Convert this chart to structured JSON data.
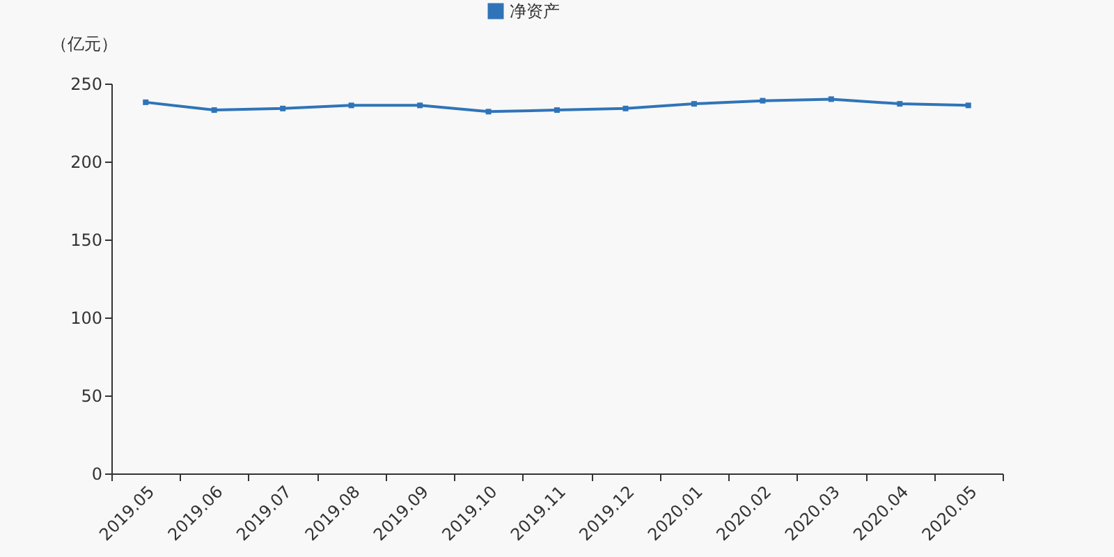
{
  "chart_data": {
    "type": "line",
    "ylabel": "（亿元）",
    "categories": [
      "2019.05",
      "2019.06",
      "2019.07",
      "2019.08",
      "2019.09",
      "2019.10",
      "2019.11",
      "2019.12",
      "2020.01",
      "2020.02",
      "2020.03",
      "2020.04",
      "2020.05"
    ],
    "series": [
      {
        "name": "净资产",
        "color": "#2f74b8",
        "values": [
          238,
          233,
          234,
          236,
          236,
          232,
          233,
          234,
          237,
          239,
          240,
          237,
          236
        ]
      }
    ],
    "ylim": [
      0,
      250
    ],
    "yticks": [
      0,
      50,
      100,
      150,
      200,
      250
    ],
    "grid": false,
    "legend": "top",
    "marker": "square",
    "line_style": "solid"
  }
}
